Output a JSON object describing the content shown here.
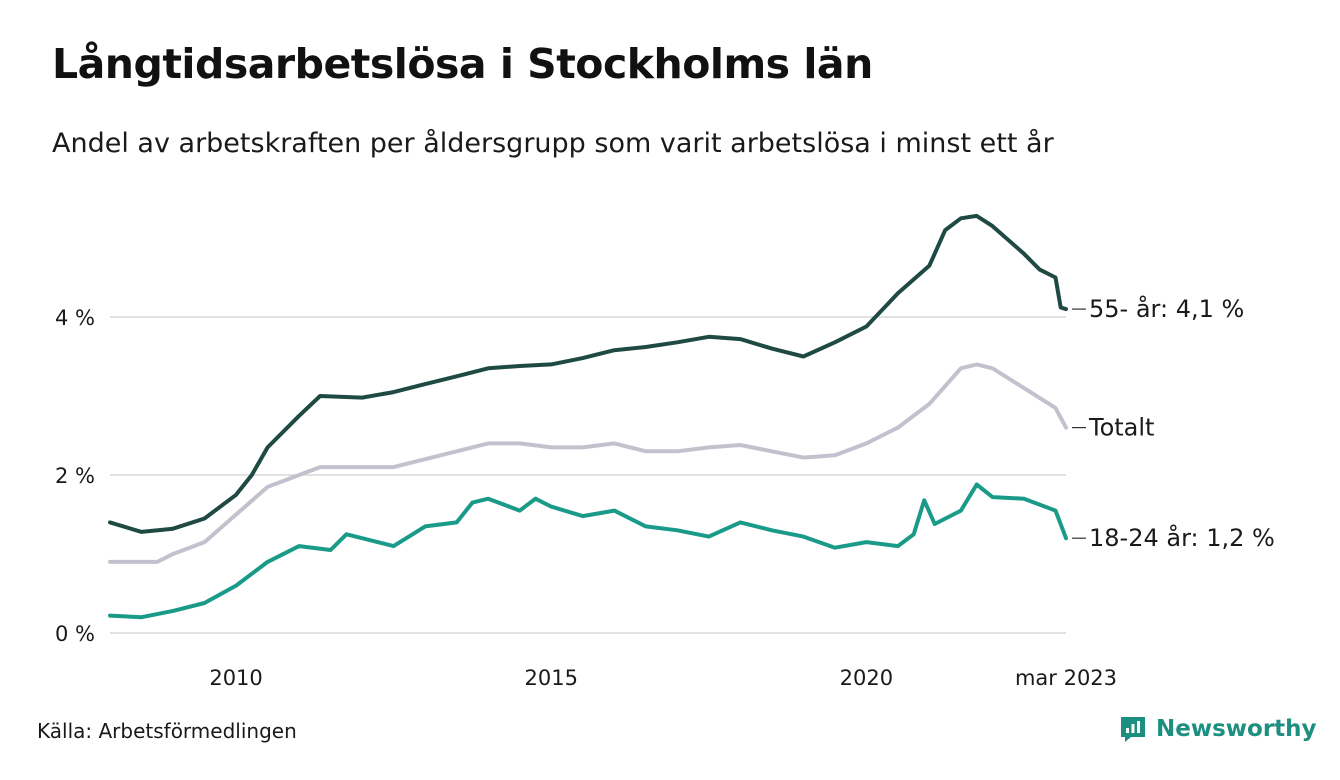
{
  "header": {
    "title": "Långtidsarbetslösa i Stockholms län",
    "subtitle": "Andel av arbetskraften per åldersgrupp som varit arbetslösa i minst ett år"
  },
  "footer": {
    "source": "Källa: Arbetsförmedlingen",
    "brand": "Newsworthy",
    "brand_icon": "newsworthy-logo-icon"
  },
  "colors": {
    "series_55": "#1f4a43",
    "series_total": "#c4c1ce",
    "series_18_24": "#1a9a88",
    "grid": "#d8d8d8",
    "brand": "#1d8f80"
  },
  "chart_data": {
    "type": "line",
    "title": "Långtidsarbetslösa i Stockholms län",
    "subtitle": "Andel av arbetskraften per åldersgrupp som varit arbetslösa i minst ett år",
    "xlabel": "",
    "ylabel": "",
    "x_ticks": [
      "2010",
      "2015",
      "2020",
      "mar 2023"
    ],
    "y_ticks": [
      "0 %",
      "2 %",
      "4 %"
    ],
    "xlim": [
      "2008-01",
      "2023-03"
    ],
    "ylim": [
      0,
      5.4
    ],
    "grid": "horizontal",
    "legend": "inline labels at line ends",
    "series": [
      {
        "key": "age55",
        "end_label": "55- år: 4,1 %",
        "color": "#1f4a43",
        "points": [
          [
            "2008-01",
            1.4
          ],
          [
            "2008-07",
            1.28
          ],
          [
            "2009-01",
            1.32
          ],
          [
            "2009-07",
            1.45
          ],
          [
            "2010-01",
            1.75
          ],
          [
            "2010-04",
            2.0
          ],
          [
            "2010-07",
            2.35
          ],
          [
            "2011-01",
            2.75
          ],
          [
            "2011-05",
            3.0
          ],
          [
            "2012-01",
            2.98
          ],
          [
            "2012-07",
            3.05
          ],
          [
            "2013-01",
            3.15
          ],
          [
            "2013-07",
            3.25
          ],
          [
            "2014-01",
            3.35
          ],
          [
            "2014-07",
            3.38
          ],
          [
            "2015-01",
            3.4
          ],
          [
            "2015-07",
            3.48
          ],
          [
            "2016-01",
            3.58
          ],
          [
            "2016-07",
            3.62
          ],
          [
            "2017-01",
            3.68
          ],
          [
            "2017-07",
            3.75
          ],
          [
            "2018-01",
            3.72
          ],
          [
            "2018-07",
            3.6
          ],
          [
            "2019-01",
            3.5
          ],
          [
            "2019-07",
            3.68
          ],
          [
            "2020-01",
            3.88
          ],
          [
            "2020-07",
            4.3
          ],
          [
            "2021-01",
            4.65
          ],
          [
            "2021-04",
            5.1
          ],
          [
            "2021-07",
            5.25
          ],
          [
            "2021-10",
            5.28
          ],
          [
            "2022-01",
            5.15
          ],
          [
            "2022-07",
            4.8
          ],
          [
            "2022-10",
            4.6
          ],
          [
            "2023-01",
            4.5
          ],
          [
            "2023-02",
            4.12
          ],
          [
            "2023-03",
            4.1
          ]
        ]
      },
      {
        "key": "total",
        "end_label": "Totalt",
        "color": "#c4c1ce",
        "points": [
          [
            "2008-01",
            0.9
          ],
          [
            "2008-10",
            0.9
          ],
          [
            "2009-01",
            1.0
          ],
          [
            "2009-07",
            1.15
          ],
          [
            "2010-01",
            1.5
          ],
          [
            "2010-07",
            1.85
          ],
          [
            "2011-01",
            2.0
          ],
          [
            "2011-05",
            2.1
          ],
          [
            "2012-01",
            2.1
          ],
          [
            "2012-07",
            2.1
          ],
          [
            "2013-01",
            2.2
          ],
          [
            "2013-07",
            2.3
          ],
          [
            "2014-01",
            2.4
          ],
          [
            "2014-07",
            2.4
          ],
          [
            "2015-01",
            2.35
          ],
          [
            "2015-07",
            2.35
          ],
          [
            "2016-01",
            2.4
          ],
          [
            "2016-07",
            2.3
          ],
          [
            "2017-01",
            2.3
          ],
          [
            "2017-07",
            2.35
          ],
          [
            "2018-01",
            2.38
          ],
          [
            "2018-07",
            2.3
          ],
          [
            "2019-01",
            2.22
          ],
          [
            "2019-07",
            2.25
          ],
          [
            "2020-01",
            2.4
          ],
          [
            "2020-07",
            2.6
          ],
          [
            "2021-01",
            2.9
          ],
          [
            "2021-07",
            3.35
          ],
          [
            "2021-10",
            3.4
          ],
          [
            "2022-01",
            3.35
          ],
          [
            "2022-07",
            3.1
          ],
          [
            "2023-01",
            2.85
          ],
          [
            "2023-03",
            2.6
          ]
        ]
      },
      {
        "key": "age18_24",
        "end_label": "18-24 år: 1,2 %",
        "color": "#1a9a88",
        "points": [
          [
            "2008-01",
            0.22
          ],
          [
            "2008-07",
            0.2
          ],
          [
            "2009-01",
            0.28
          ],
          [
            "2009-07",
            0.38
          ],
          [
            "2010-01",
            0.6
          ],
          [
            "2010-07",
            0.9
          ],
          [
            "2011-01",
            1.1
          ],
          [
            "2011-07",
            1.05
          ],
          [
            "2011-10",
            1.25
          ],
          [
            "2012-01",
            1.2
          ],
          [
            "2012-07",
            1.1
          ],
          [
            "2013-01",
            1.35
          ],
          [
            "2013-07",
            1.4
          ],
          [
            "2013-10",
            1.65
          ],
          [
            "2014-01",
            1.7
          ],
          [
            "2014-07",
            1.55
          ],
          [
            "2014-10",
            1.7
          ],
          [
            "2015-01",
            1.6
          ],
          [
            "2015-07",
            1.48
          ],
          [
            "2016-01",
            1.55
          ],
          [
            "2016-07",
            1.35
          ],
          [
            "2017-01",
            1.3
          ],
          [
            "2017-07",
            1.22
          ],
          [
            "2018-01",
            1.4
          ],
          [
            "2018-07",
            1.3
          ],
          [
            "2019-01",
            1.22
          ],
          [
            "2019-07",
            1.08
          ],
          [
            "2020-01",
            1.15
          ],
          [
            "2020-07",
            1.1
          ],
          [
            "2020-10",
            1.25
          ],
          [
            "2020-12",
            1.68
          ],
          [
            "2021-02",
            1.38
          ],
          [
            "2021-07",
            1.55
          ],
          [
            "2021-10",
            1.88
          ],
          [
            "2022-01",
            1.72
          ],
          [
            "2022-07",
            1.7
          ],
          [
            "2023-01",
            1.55
          ],
          [
            "2023-03",
            1.2
          ]
        ]
      }
    ]
  }
}
